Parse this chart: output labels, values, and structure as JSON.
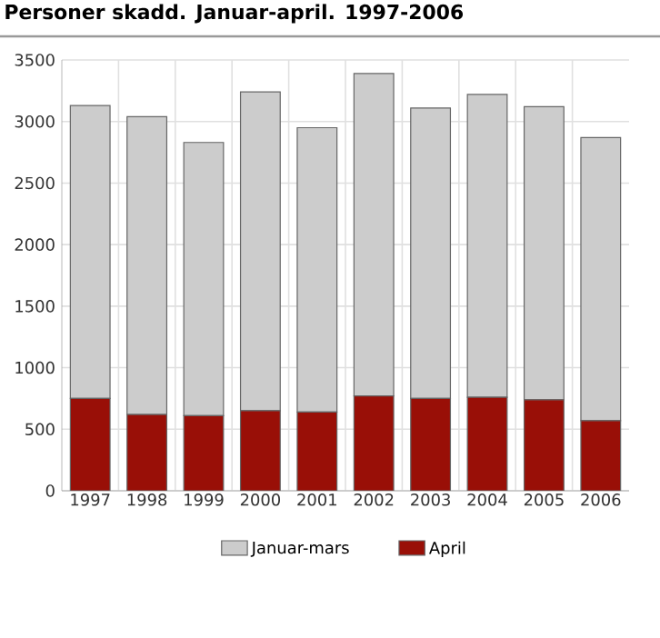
{
  "chart_data": {
    "type": "bar",
    "title": "Personer skadd. Januar-april. 1997-2006",
    "stacked": true,
    "categories": [
      "1997",
      "1998",
      "1999",
      "2000",
      "2001",
      "2002",
      "2003",
      "2004",
      "2005",
      "2006"
    ],
    "series": [
      {
        "name": "April",
        "color": "#990f07",
        "values": [
          750,
          620,
          610,
          650,
          640,
          770,
          750,
          760,
          740,
          570
        ]
      },
      {
        "name": "Januar-mars",
        "color": "#cccccc",
        "values": [
          2380,
          2420,
          2220,
          2590,
          2310,
          2620,
          2360,
          2460,
          2380,
          2300
        ]
      }
    ],
    "ylim": [
      0,
      3500
    ],
    "yticks": [
      0,
      500,
      1000,
      1500,
      2000,
      2500,
      3000,
      3500
    ],
    "grid": true,
    "legend": "bottom"
  }
}
